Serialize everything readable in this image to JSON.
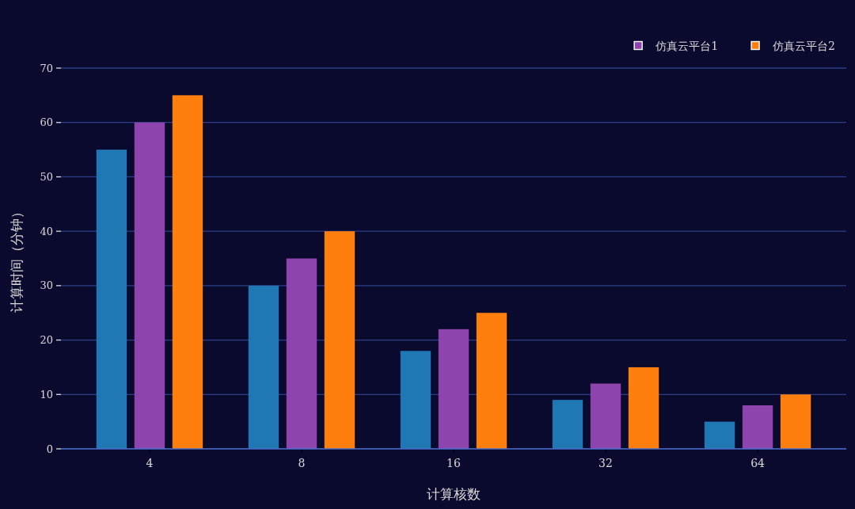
{
  "chart_data": {
    "type": "bar",
    "xlabel": "计算核数",
    "ylabel": "计算时间（分钟）",
    "categories": [
      "4",
      "8",
      "16",
      "32",
      "64"
    ],
    "series": [
      {
        "color": "#1f77b4",
        "values": [
          55,
          30,
          18,
          9,
          5
        ]
      },
      {
        "name": "仿真云平台1",
        "color": "#8e44ad",
        "values": [
          60,
          35,
          22,
          12,
          8
        ]
      },
      {
        "name": "仿真云平台2",
        "color": "#ff7f0e",
        "values": [
          65,
          40,
          25,
          15,
          10
        ]
      }
    ],
    "ylim": [
      0,
      70
    ],
    "yticks": [
      0,
      10,
      20,
      30,
      40,
      50,
      60,
      70
    ],
    "grid": "y",
    "legend": "top right"
  }
}
